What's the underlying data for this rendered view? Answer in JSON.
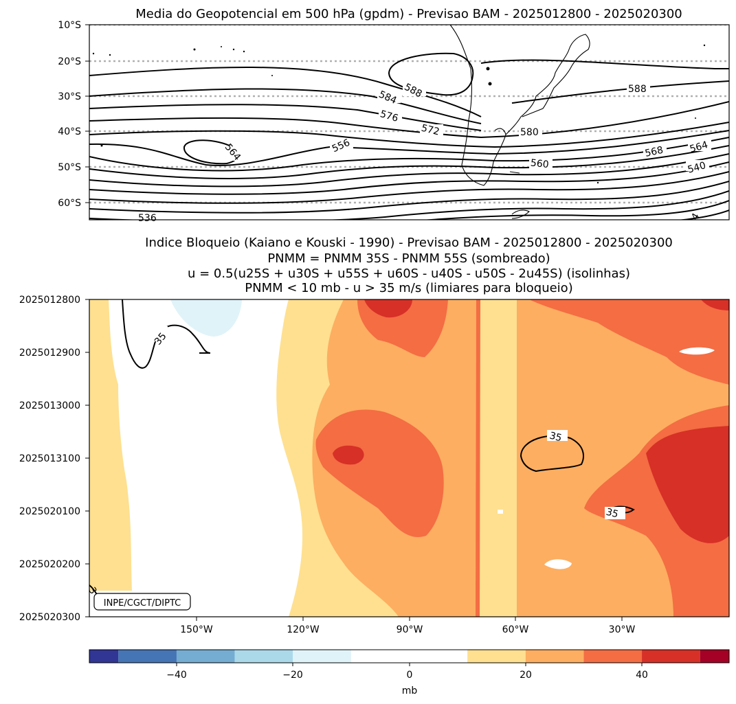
{
  "panel1": {
    "title": "Media do Geopotencial em 500 hPa (gpdm) - Previsao BAM - 2025012800 - 2025020300",
    "lat_ticks": [
      "10°S",
      "20°S",
      "30°S",
      "40°S",
      "50°S",
      "60°S"
    ],
    "contour_labels": [
      "588",
      "584",
      "576",
      "572",
      "580",
      "588",
      "564",
      "556",
      "560",
      "568",
      "564",
      "540",
      "536",
      "4"
    ]
  },
  "panel2": {
    "title_lines": [
      "Indice Bloqueio (Kaiano e Kouski - 1990) - Previsao BAM - 2025012800 - 2025020300",
      "PNMM = PNMM 35S - PNMM 55S (sombreado)",
      "u = 0.5(u25S + u30S + u55S + u60S - u40S - u50S - 2u45S) (isolinhas)",
      "PNMM < 10 mb - u > 35 m/s (limiares para bloqueio)"
    ],
    "time_ticks": [
      "2025012800",
      "2025012900",
      "2025013000",
      "2025013100",
      "2025020100",
      "2025020200",
      "2025020300"
    ],
    "lon_ticks": [
      "150°W",
      "120°W",
      "90°W",
      "60°W",
      "30°W"
    ],
    "contour_labels": [
      "35",
      "35",
      "35",
      "3"
    ],
    "credit": "INPE/CGCT/DIPTC"
  },
  "colorbar": {
    "label": "mb",
    "tick_labels": [
      "−40",
      "−20",
      "0",
      "20",
      "40"
    ],
    "colors": [
      "#313695",
      "#4575b4",
      "#74add1",
      "#abd9e9",
      "#e0f3f8",
      "#ffffff",
      "#ffffff",
      "#fee090",
      "#fdae61",
      "#f46d43",
      "#d73027",
      "#a50026"
    ]
  },
  "chart_data": [
    {
      "type": "contour",
      "title": "Media do Geopotencial em 500 hPa (gpdm) - Previsao BAM - 2025012800 - 2025020300",
      "ylabel": "",
      "yticks": [
        "10°S",
        "20°S",
        "30°S",
        "40°S",
        "50°S",
        "60°S"
      ],
      "ylim_deg": [
        -65,
        -10
      ],
      "grid": "dotted latitude lines",
      "contour_levels_gpdm": [
        536,
        540,
        556,
        560,
        564,
        568,
        572,
        576,
        580,
        584,
        588
      ]
    },
    {
      "type": "heatmap",
      "title": "Indice Bloqueio (Kaiano e Kouski - 1990) - Previsao BAM - 2025012800 - 2025020300",
      "x_ticks": [
        "150°W",
        "120°W",
        "90°W",
        "60°W",
        "30°W"
      ],
      "y_ticks": [
        "2025012800",
        "2025012900",
        "2025013000",
        "2025013100",
        "2025020100",
        "2025020200",
        "2025020300"
      ],
      "colorbar": {
        "label": "mb",
        "range": [
          -55,
          55
        ],
        "levels": [
          -55,
          -50,
          -40,
          -30,
          -20,
          -10,
          0,
          10,
          20,
          30,
          40,
          50,
          55
        ],
        "ticks": [
          -40,
          -20,
          0,
          20,
          40
        ]
      },
      "contour_levels": [
        35
      ]
    }
  ]
}
